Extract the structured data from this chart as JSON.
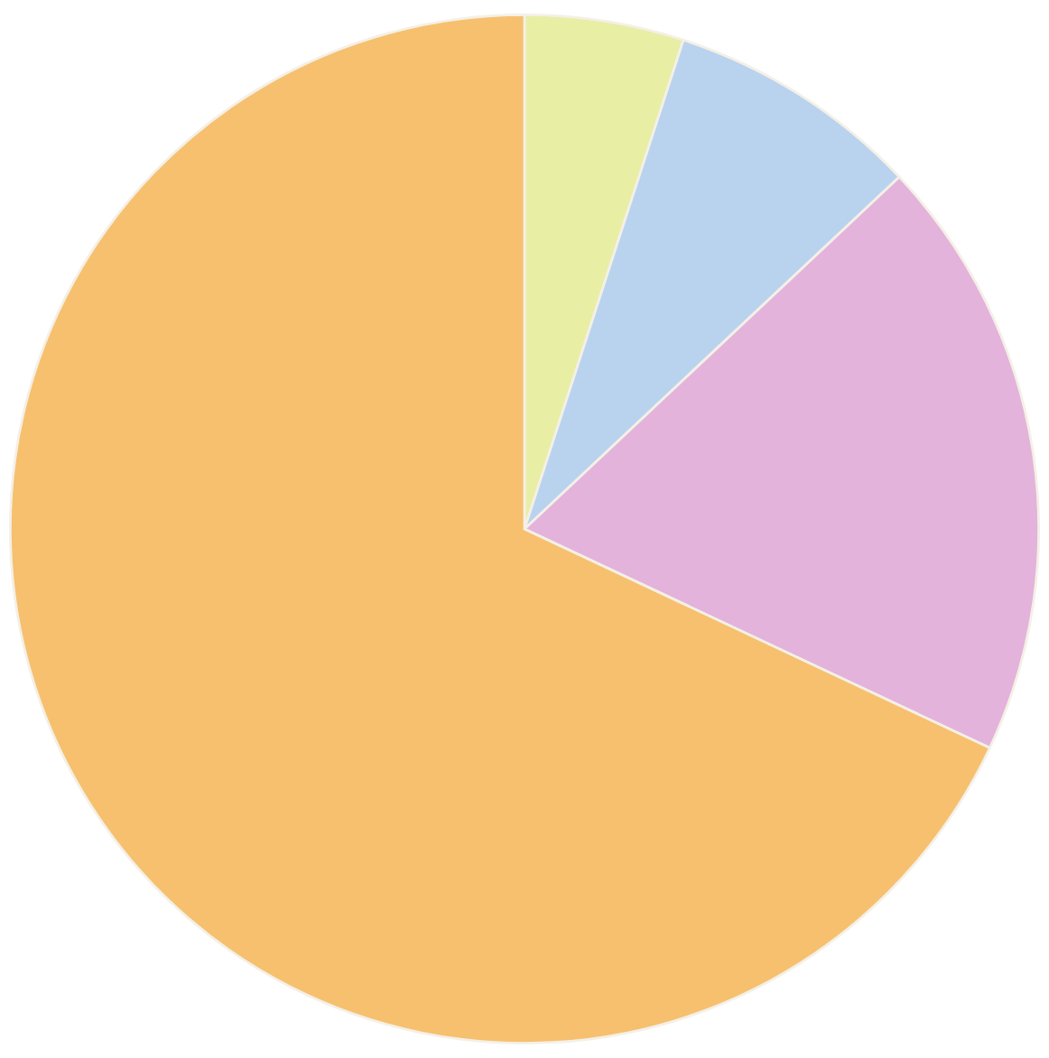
{
  "chart_data": {
    "type": "pie",
    "categories": [
      null,
      null,
      null,
      null
    ],
    "values": [
      5,
      8,
      19,
      68
    ],
    "colors": [
      "#e8eea4",
      "#b9d3ef",
      "#e3b3dc",
      "#f6c06e"
    ]
  }
}
